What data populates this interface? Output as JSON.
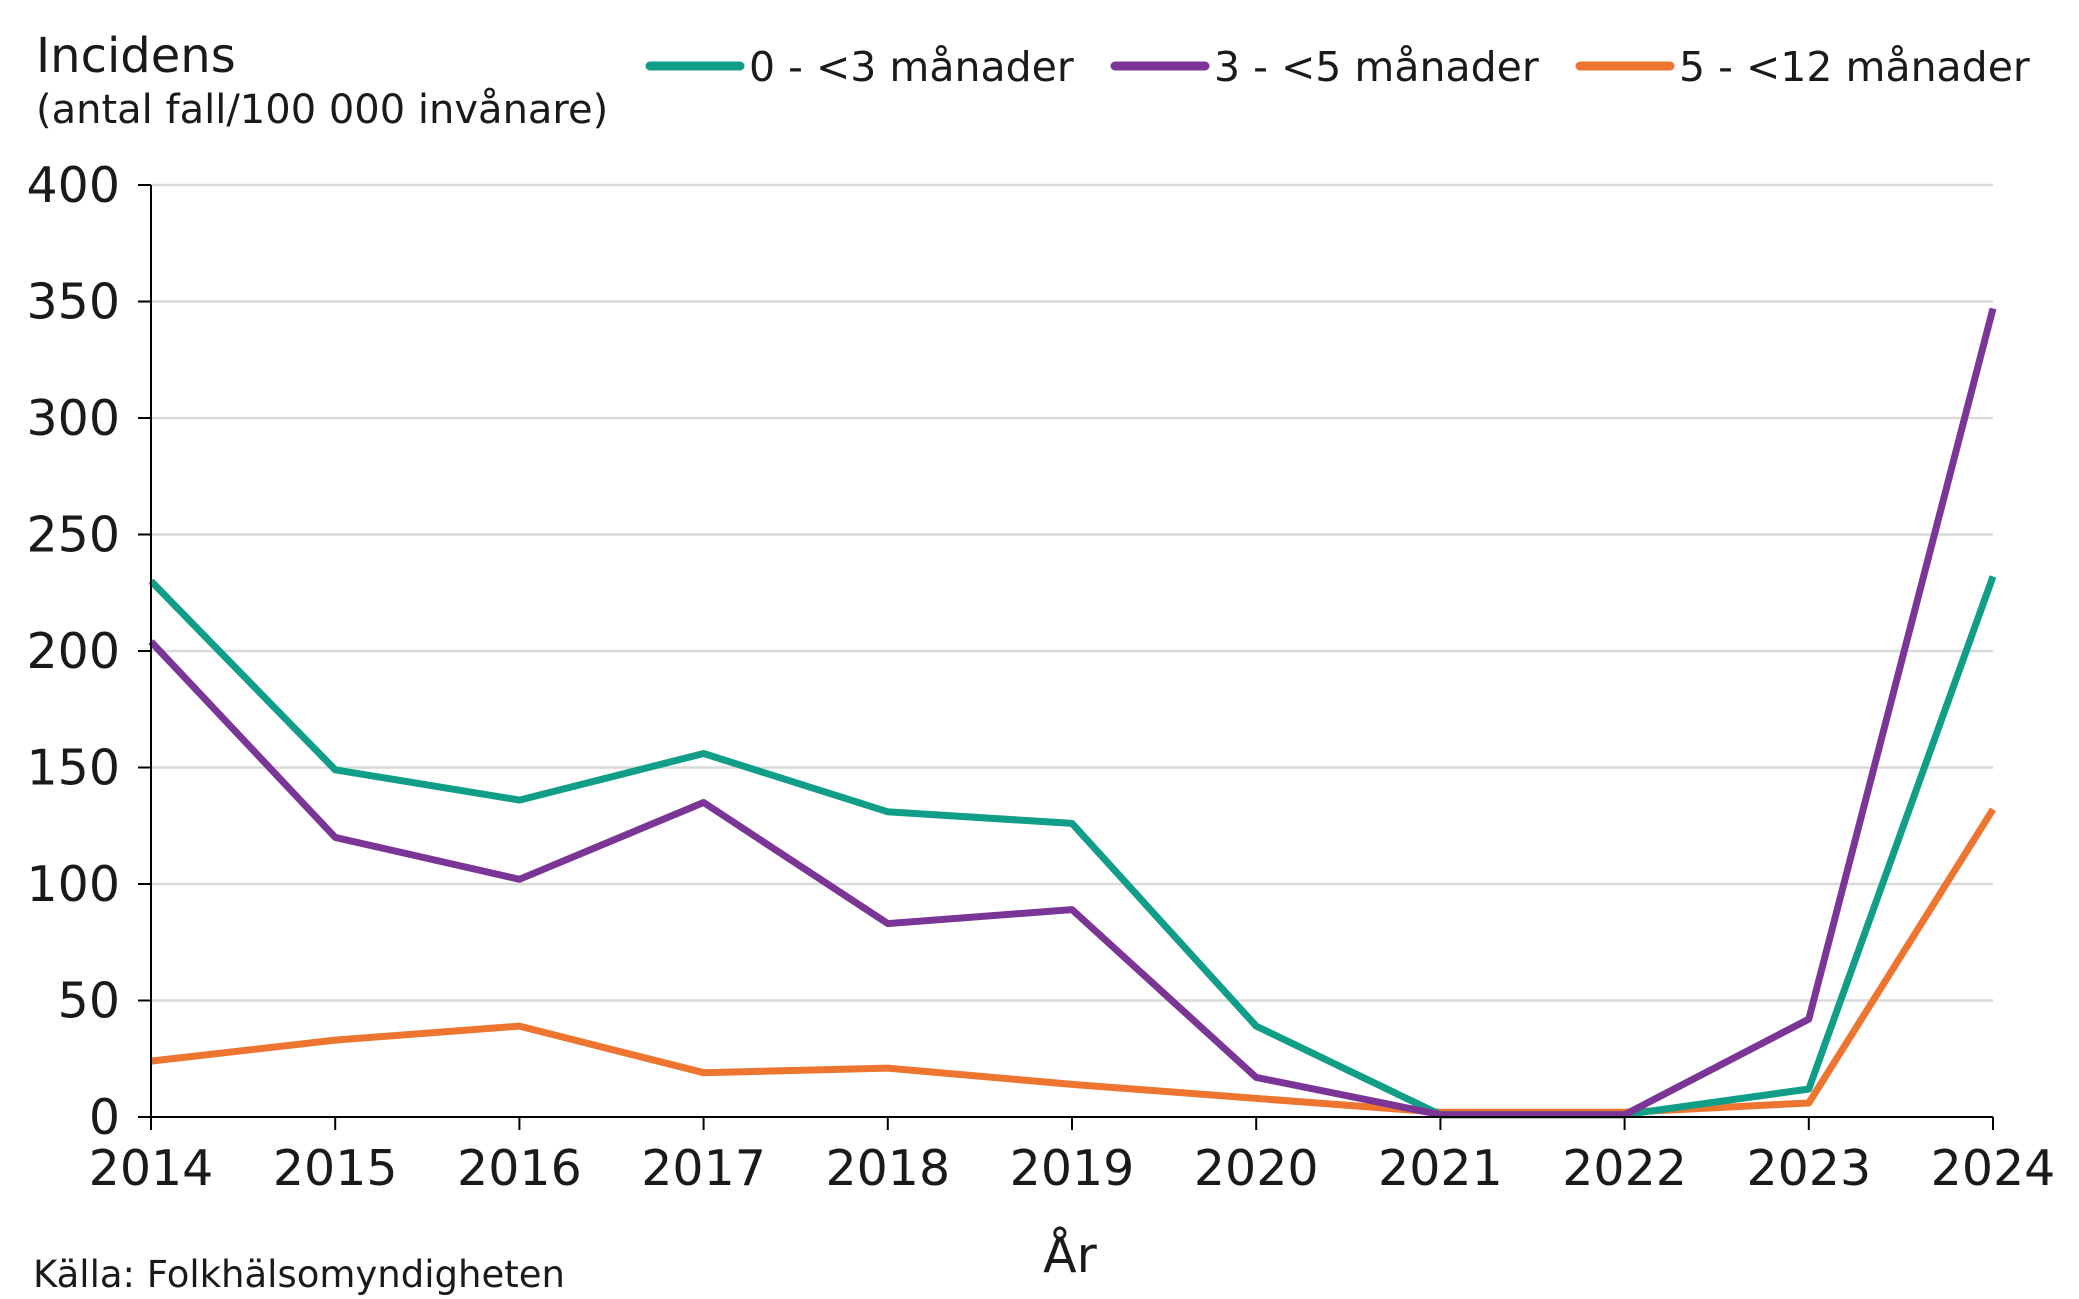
{
  "chart_data": {
    "type": "line",
    "title": "",
    "ylabel": "Incidens",
    "ylabel_sub": "(antal fall/100 000 invånare)",
    "xlabel": "År",
    "source": "Källa: Folkhälsomyndigheten",
    "x": [
      "2014",
      "2015",
      "2016",
      "2017",
      "2018",
      "2019",
      "2020",
      "2021",
      "2022",
      "2023",
      "2024"
    ],
    "ylim": [
      0,
      400
    ],
    "yticks": [
      0,
      50,
      100,
      150,
      200,
      250,
      300,
      350,
      400
    ],
    "grid": true,
    "legend_position": "top",
    "series": [
      {
        "name": "0 - <3 månader",
        "color": "#109e88",
        "values": [
          230,
          149,
          136,
          156,
          131,
          126,
          39,
          1,
          1,
          12,
          232
        ]
      },
      {
        "name": "3 - <5 månader",
        "color": "#7b3596",
        "values": [
          204,
          120,
          102,
          135,
          83,
          89,
          17,
          1,
          1,
          42,
          347
        ]
      },
      {
        "name": "5 - <12 månader",
        "color": "#ee7530",
        "values": [
          24,
          33,
          39,
          19,
          21,
          14,
          8,
          2,
          2,
          6,
          132
        ]
      }
    ]
  }
}
